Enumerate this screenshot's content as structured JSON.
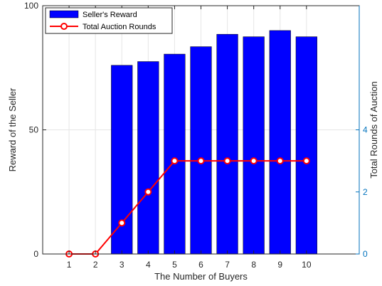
{
  "chart_data": {
    "type": "bar+line",
    "categories": [
      "1",
      "2",
      "3",
      "4",
      "5",
      "6",
      "7",
      "8",
      "9",
      "10"
    ],
    "xlabel": "The Number of Buyers",
    "ylabel_left": "Reward of the Seller",
    "ylabel_right": "Total Rounds of Auction",
    "ylim_left": [
      0,
      100
    ],
    "ylim_right": [
      0,
      8
    ],
    "yticks_left": [
      "0",
      "50",
      "100"
    ],
    "yticks_right": [
      "0",
      "2",
      "4"
    ],
    "grid": true,
    "legend_position": "top-left",
    "series": [
      {
        "name": "Seller's Reward",
        "kind": "bar",
        "axis": "left",
        "color": "#0000ff",
        "values": [
          0,
          0,
          76,
          77.5,
          80.5,
          83.5,
          88.5,
          87.5,
          90,
          87.5
        ]
      },
      {
        "name": "Total Auction Rounds",
        "kind": "line",
        "axis": "right",
        "color": "#ff0000",
        "values": [
          0,
          0,
          1,
          2,
          3,
          3,
          3,
          3,
          3,
          3
        ]
      }
    ],
    "right_axis_color": "#0072BD"
  }
}
